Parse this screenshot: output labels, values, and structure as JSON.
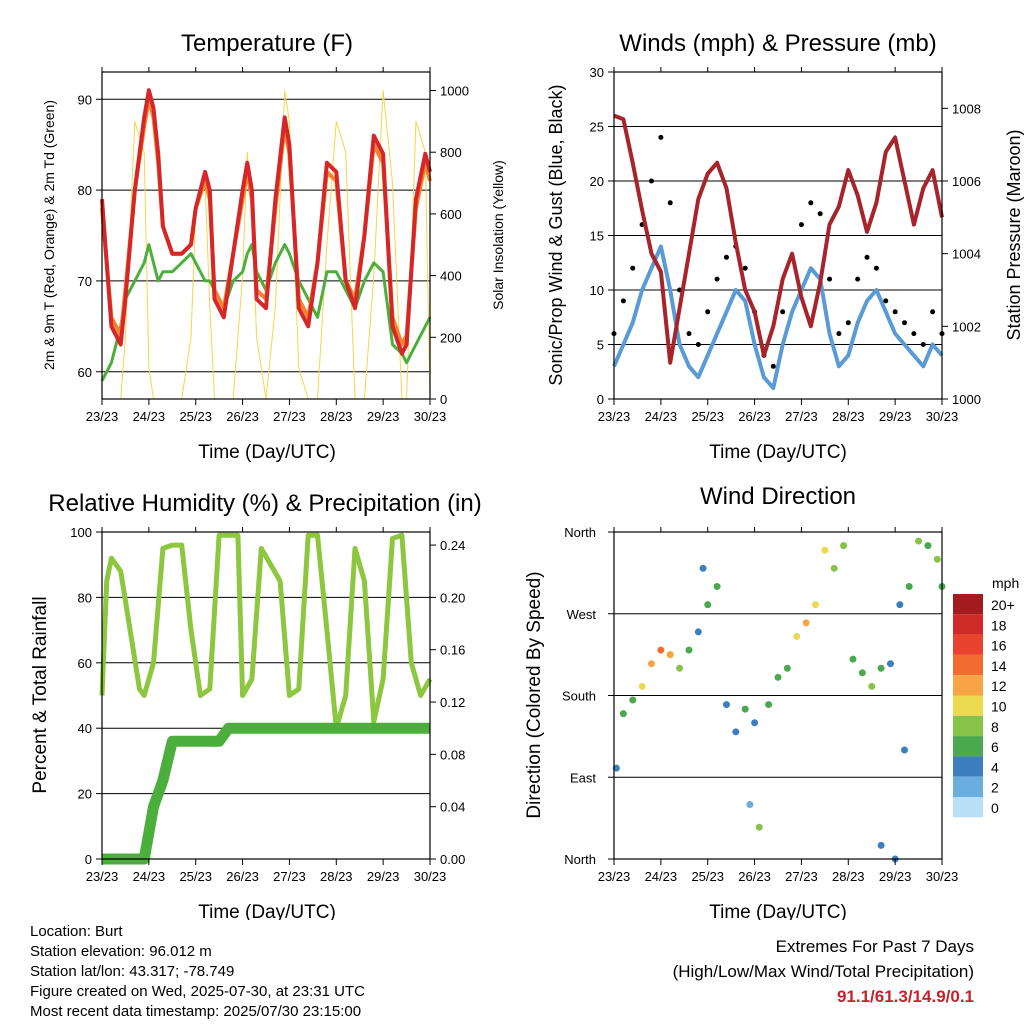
{
  "x_ticks": [
    "23/23",
    "24/23",
    "25/23",
    "26/23",
    "27/23",
    "28/23",
    "29/23",
    "30/23"
  ],
  "x_label": "Time (Day/UTC)",
  "chart_data": [
    {
      "type": "line",
      "title": "Temperature (F)",
      "xlabel": "Time (Day/UTC)",
      "ylabel": "2m & 9m T (Red, Orange) & 2m Td (Green)",
      "y2label": "Solar Insolation (Yellow)",
      "ylim": [
        57,
        93
      ],
      "yticks": [
        60,
        70,
        80,
        90
      ],
      "y2lim": [
        0,
        1060
      ],
      "y2ticks": [
        0,
        200,
        400,
        600,
        800,
        1000
      ],
      "x": [
        0,
        0.2,
        0.4,
        0.5,
        0.7,
        0.9,
        1.0,
        1.1,
        1.2,
        1.3,
        1.5,
        1.7,
        1.9,
        2.0,
        2.2,
        2.3,
        2.4,
        2.6,
        2.8,
        3.0,
        3.1,
        3.2,
        3.3,
        3.5,
        3.7,
        3.9,
        4.0,
        4.2,
        4.4,
        4.6,
        4.8,
        5.0,
        5.2,
        5.4,
        5.6,
        5.8,
        6.0,
        6.2,
        6.4,
        6.5,
        6.7,
        6.9,
        7.0
      ],
      "series": [
        {
          "color": "#d62728",
          "values": [
            79,
            65,
            63,
            68,
            80,
            88,
            91,
            89,
            84,
            76,
            73,
            73,
            74,
            78,
            82,
            80,
            68,
            66,
            73,
            80,
            83,
            80,
            68,
            67,
            79,
            88,
            85,
            67,
            65,
            72,
            83,
            82,
            70,
            67,
            75,
            86,
            84,
            65,
            62,
            63,
            79,
            84,
            82
          ]
        },
        {
          "color": "#f58231",
          "values": [
            78,
            66,
            64,
            69,
            80,
            87,
            90,
            88,
            83,
            76,
            73,
            73,
            74,
            78,
            81,
            79,
            69,
            67,
            73,
            79,
            82,
            79,
            69,
            68,
            78,
            87,
            84,
            68,
            66,
            72,
            82,
            81,
            70,
            68,
            75,
            85,
            83,
            66,
            63,
            64,
            78,
            83,
            81
          ]
        },
        {
          "color": "#4cae3c",
          "values": [
            59,
            61,
            65,
            68,
            70,
            72,
            74,
            72,
            70,
            71,
            71,
            72,
            73,
            72,
            70,
            70,
            69,
            67,
            70,
            71,
            73,
            74,
            71,
            69,
            72,
            74,
            73,
            70,
            68,
            66,
            71,
            71,
            69,
            67,
            70,
            72,
            71,
            63,
            62,
            61,
            63,
            65,
            66
          ]
        },
        {
          "color": "#f5d64a",
          "values": [
            0,
            0,
            0,
            200,
            900,
            800,
            100,
            0,
            0,
            0,
            0,
            0,
            200,
            600,
            700,
            300,
            0,
            0,
            0,
            400,
            800,
            600,
            200,
            0,
            300,
            1000,
            900,
            100,
            0,
            0,
            500,
            900,
            800,
            0,
            0,
            400,
            1000,
            700,
            0,
            0,
            900,
            800,
            0
          ]
        }
      ]
    },
    {
      "type": "line",
      "title": "Winds (mph) & Pressure (mb)",
      "xlabel": "Time (Day/UTC)",
      "ylabel": "Sonic/Prop Wind & Gust (Blue, Black)",
      "y2label": "Station Pressure (Maroon)",
      "ylim": [
        0,
        30
      ],
      "yticks": [
        0,
        5,
        10,
        15,
        20,
        25,
        30
      ],
      "y2lim": [
        1000,
        1009
      ],
      "y2ticks": [
        1000,
        1002,
        1004,
        1006,
        1008
      ],
      "x": [
        0,
        0.2,
        0.4,
        0.6,
        0.8,
        1.0,
        1.2,
        1.4,
        1.6,
        1.8,
        2.0,
        2.2,
        2.4,
        2.6,
        2.8,
        3.0,
        3.2,
        3.4,
        3.6,
        3.8,
        4.0,
        4.2,
        4.4,
        4.6,
        4.8,
        5.0,
        5.2,
        5.4,
        5.6,
        5.8,
        6.0,
        6.2,
        6.4,
        6.6,
        6.8,
        7.0
      ],
      "series": [
        {
          "color": "#5b9bd5",
          "values": [
            3,
            5,
            7,
            10,
            12,
            14,
            10,
            5,
            3,
            2,
            4,
            6,
            8,
            10,
            9,
            5,
            2,
            1,
            5,
            8,
            10,
            12,
            11,
            6,
            3,
            4,
            7,
            9,
            10,
            8,
            6,
            5,
            4,
            3,
            5,
            4
          ]
        },
        {
          "color": "#000000",
          "values": [
            6,
            9,
            12,
            16,
            20,
            24,
            18,
            10,
            6,
            5,
            8,
            11,
            13,
            14,
            12,
            8,
            4,
            3,
            8,
            13,
            16,
            18,
            17,
            11,
            6,
            7,
            11,
            13,
            12,
            9,
            8,
            7,
            6,
            5,
            8,
            6
          ]
        },
        {
          "color": "#a6242a",
          "values": [
            1007.8,
            1007.7,
            1006.5,
            1005.2,
            1004.0,
            1003.5,
            1001.0,
            1002.5,
            1004.0,
            1005.5,
            1006.2,
            1006.5,
            1005.8,
            1004.3,
            1003.0,
            1002.4,
            1001.2,
            1002.0,
            1003.3,
            1004.0,
            1002.8,
            1002.0,
            1003.2,
            1004.8,
            1005.3,
            1006.3,
            1005.6,
            1004.6,
            1005.4,
            1006.8,
            1007.2,
            1006.0,
            1004.8,
            1005.8,
            1006.3,
            1005.0
          ]
        }
      ]
    },
    {
      "type": "line",
      "title": "Relative Humidity (%) & Precipitation (in)",
      "xlabel": "Time (Day/UTC)",
      "ylabel": "Percent & Total Rainfall",
      "ylim": [
        0,
        100
      ],
      "yticks": [
        0,
        20,
        40,
        60,
        80,
        100
      ],
      "y2lim": [
        0,
        0.25
      ],
      "y2ticks": [
        "0.00",
        "0.04",
        "0.08",
        "0.12",
        "0.16",
        "0.20",
        "0.24"
      ],
      "x": [
        0,
        0.1,
        0.2,
        0.4,
        0.6,
        0.8,
        0.9,
        1.1,
        1.3,
        1.5,
        1.7,
        1.9,
        2.1,
        2.3,
        2.5,
        2.7,
        2.9,
        3.0,
        3.2,
        3.4,
        3.6,
        3.8,
        4.0,
        4.2,
        4.4,
        4.6,
        4.8,
        5.0,
        5.2,
        5.4,
        5.6,
        5.8,
        6.0,
        6.2,
        6.4,
        6.6,
        6.8,
        7.0
      ],
      "series": [
        {
          "color": "#8dc63f",
          "values": [
            50,
            85,
            92,
            88,
            70,
            52,
            50,
            60,
            95,
            96,
            96,
            70,
            50,
            52,
            99,
            99,
            99,
            50,
            55,
            95,
            90,
            85,
            50,
            52,
            99,
            99,
            70,
            40,
            50,
            95,
            85,
            42,
            55,
            98,
            99,
            60,
            50,
            55
          ]
        },
        {
          "color": "#4cae3c",
          "values": [
            0,
            0,
            0,
            0,
            0,
            0,
            0,
            0.04,
            0.06,
            0.09,
            0.09,
            0.09,
            0.09,
            0.09,
            0.09,
            0.1,
            0.1,
            0.1,
            0.1,
            0.1,
            0.1,
            0.1,
            0.1,
            0.1,
            0.1,
            0.1,
            0.1,
            0.1,
            0.1,
            0.1,
            0.1,
            0.1,
            0.1,
            0.1,
            0.1,
            0.1,
            0.1,
            0.1
          ]
        }
      ]
    },
    {
      "type": "scatter",
      "title": "Wind Direction",
      "xlabel": "Time (Day/UTC)",
      "ylabel": "Direction (Colored By Speed)",
      "yticks": [
        "North",
        "East",
        "South",
        "West",
        "North"
      ],
      "x": [
        0.05,
        0.2,
        0.4,
        0.6,
        0.8,
        1.0,
        1.2,
        1.4,
        1.6,
        1.8,
        2.0,
        2.2,
        2.4,
        2.6,
        2.8,
        3.0,
        3.1,
        3.3,
        3.5,
        3.7,
        3.9,
        4.1,
        4.3,
        4.5,
        4.7,
        4.9,
        5.1,
        5.3,
        5.5,
        5.7,
        5.9,
        6.1,
        6.3,
        6.5,
        6.7,
        6.9,
        7.0,
        1.9,
        2.9,
        5.7,
        6.2,
        6.0
      ],
      "values": [
        100,
        160,
        175,
        190,
        215,
        230,
        225,
        210,
        230,
        250,
        280,
        300,
        170,
        140,
        165,
        150,
        35,
        170,
        200,
        210,
        245,
        260,
        280,
        340,
        320,
        345,
        220,
        205,
        190,
        210,
        215,
        280,
        300,
        350,
        345,
        330,
        300,
        320,
        60,
        15,
        120,
        0
      ],
      "speed": [
        3,
        5,
        6,
        9,
        12,
        14,
        12,
        8,
        5,
        4,
        6,
        5,
        4,
        3,
        6,
        4,
        8,
        5,
        6,
        5,
        10,
        11,
        9,
        10,
        8,
        7,
        6,
        5,
        7,
        5,
        4,
        3,
        5,
        8,
        6,
        7,
        5,
        3,
        2,
        3,
        3,
        4
      ],
      "legend_title": "mph",
      "legend_labels": [
        "20+",
        "18",
        "16",
        "14",
        "12",
        "10",
        "8",
        "6",
        "4",
        "2",
        "0"
      ],
      "legend_colors": [
        "#a31a1f",
        "#cf2b29",
        "#e8432c",
        "#f26c30",
        "#f7a445",
        "#ebd951",
        "#86c348",
        "#4aa84f",
        "#3b7fbf",
        "#6aaee0",
        "#b8dff5"
      ]
    }
  ],
  "info": {
    "location": "Location: Burt",
    "elevation": "Station elevation: 96.012 m",
    "latlon": "Station lat/lon: 43.317; -78.749",
    "created": "Figure created on Wed, 2025-07-30, at 23:31 UTC",
    "recent": "Most recent data timestamp: 2025/07/30 23:15:00"
  },
  "extremes": {
    "title": "Extremes For Past 7 Days",
    "subtitle": "(High/Low/Max Wind/Total Precipitation)",
    "values": "91.1/61.3/14.9/0.1"
  }
}
